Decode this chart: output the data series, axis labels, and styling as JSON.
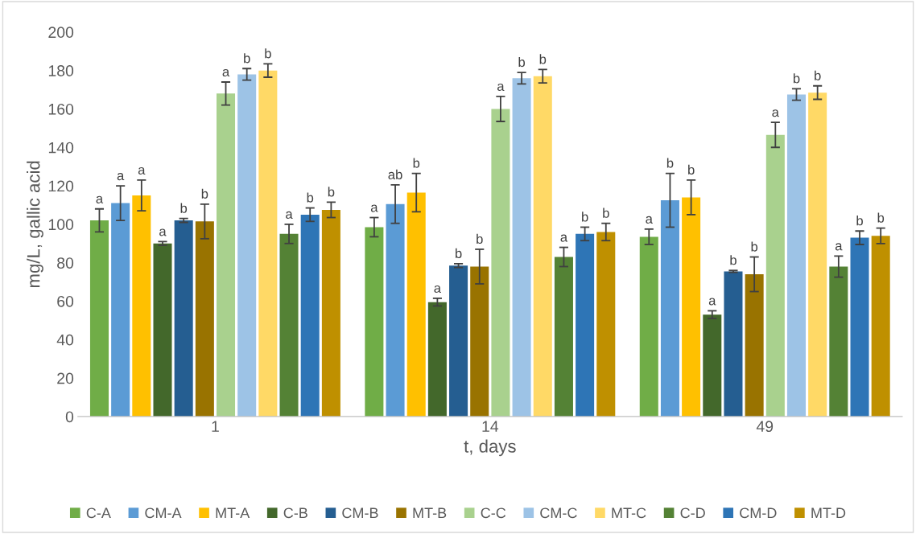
{
  "chart_data": {
    "type": "bar",
    "xlabel": "t, days",
    "ylabel": "mg/L, gallic acid",
    "categories": [
      "1",
      "14",
      "49"
    ],
    "ylim": [
      0,
      200
    ],
    "yticks": [
      0,
      20,
      40,
      60,
      80,
      100,
      120,
      140,
      160,
      180,
      200
    ],
    "grid": false,
    "legend": "bottom",
    "series": [
      {
        "name": "C-A",
        "color": "#70ad47",
        "values": [
          102,
          98.5,
          93.5
        ],
        "errors": [
          6,
          5,
          4
        ],
        "value_labels": [
          "a",
          "a",
          "a"
        ]
      },
      {
        "name": "CM-A",
        "color": "#5b9bd5",
        "values": [
          111,
          110.5,
          112.5
        ],
        "errors": [
          9,
          10,
          14
        ],
        "value_labels": [
          "a",
          "ab",
          "b"
        ]
      },
      {
        "name": "MT-A",
        "color": "#ffc000",
        "values": [
          115,
          116.5,
          114
        ],
        "errors": [
          8,
          10,
          9
        ],
        "value_labels": [
          "a",
          "b",
          "b"
        ]
      },
      {
        "name": "C-B",
        "color": "#43682b",
        "values": [
          90,
          59.5,
          53
        ],
        "errors": [
          1,
          2,
          2
        ],
        "value_labels": [
          "a",
          "a",
          "a"
        ]
      },
      {
        "name": "CM-B",
        "color": "#255e91",
        "values": [
          102,
          78.5,
          75.5
        ],
        "errors": [
          1,
          1,
          0.5
        ],
        "value_labels": [
          "b",
          "b",
          "b"
        ]
      },
      {
        "name": "MT-B",
        "color": "#997300",
        "values": [
          101.5,
          78,
          74
        ],
        "errors": [
          9,
          9,
          9
        ],
        "value_labels": [
          "b",
          "b",
          "b"
        ]
      },
      {
        "name": "C-C",
        "color": "#a9d18e",
        "values": [
          168,
          160,
          146.5
        ],
        "errors": [
          6,
          6.5,
          6.5
        ],
        "value_labels": [
          "a",
          "a",
          "a"
        ]
      },
      {
        "name": "CM-C",
        "color": "#9dc3e6",
        "values": [
          178,
          176,
          167.5
        ],
        "errors": [
          3,
          3,
          3
        ],
        "value_labels": [
          "b",
          "b",
          "b"
        ]
      },
      {
        "name": "MT-C",
        "color": "#ffd966",
        "values": [
          180,
          177,
          168.5
        ],
        "errors": [
          3.5,
          3.5,
          3.5
        ],
        "value_labels": [
          "b",
          "b",
          "b"
        ]
      },
      {
        "name": "C-D",
        "color": "#548235",
        "values": [
          95,
          83,
          78
        ],
        "errors": [
          5,
          5,
          5.5
        ],
        "value_labels": [
          "a",
          "a",
          "a"
        ]
      },
      {
        "name": "CM-D",
        "color": "#2e75b6",
        "values": [
          105,
          95,
          93
        ],
        "errors": [
          3.5,
          3.5,
          3.5
        ],
        "value_labels": [
          "b",
          "b",
          "b"
        ]
      },
      {
        "name": "MT-D",
        "color": "#bf9000",
        "values": [
          107.5,
          96,
          94
        ],
        "errors": [
          4,
          4.5,
          4
        ],
        "value_labels": [
          "b",
          "b",
          "b"
        ]
      }
    ]
  }
}
